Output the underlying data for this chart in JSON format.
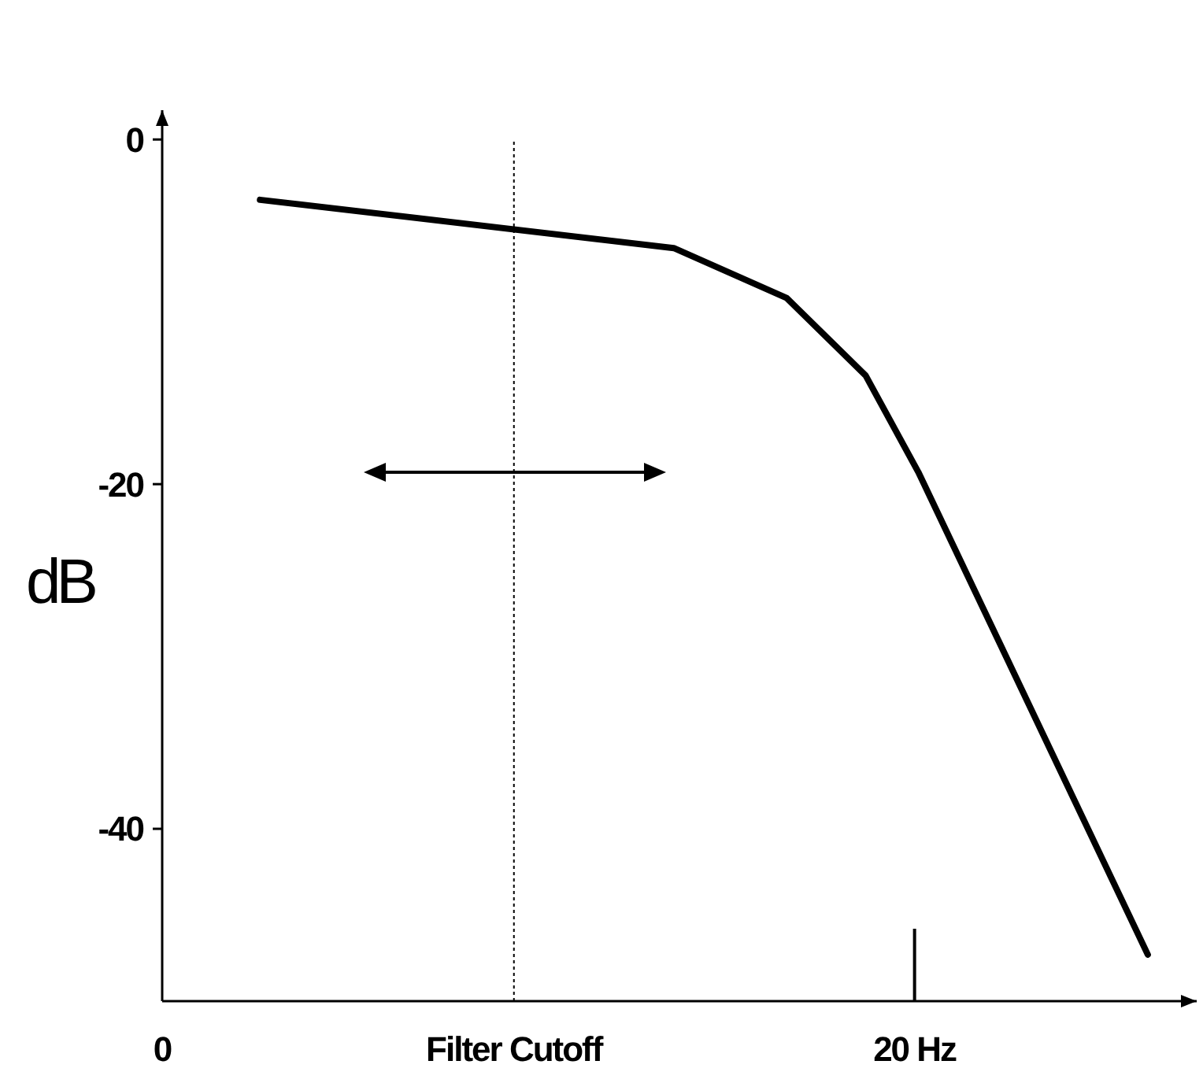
{
  "chart_data": {
    "type": "line",
    "ylabel": "dB",
    "xlim": [
      0,
      27.5
    ],
    "ylim": [
      -50,
      1.7
    ],
    "xticks": [
      0,
      {
        "value": 20,
        "label": "20 Hz"
      }
    ],
    "yticks": [
      0,
      -20,
      -40
    ],
    "x": [
      2.6,
      13.6,
      16.6,
      18.7,
      20.1,
      26.2
    ],
    "series": [
      {
        "color": "#000000",
        "values": [
          -3.5,
          -6.3,
          -9.2,
          -13.7,
          -19.3,
          -47.3
        ]
      }
    ],
    "ref_lines": [
      {
        "axis": "x",
        "value": 9.35,
        "label": "Filter Cutoff",
        "color": "#000000",
        "line_style": "dotted"
      }
    ],
    "grid": false,
    "marker": "none",
    "line_style": "solid"
  }
}
